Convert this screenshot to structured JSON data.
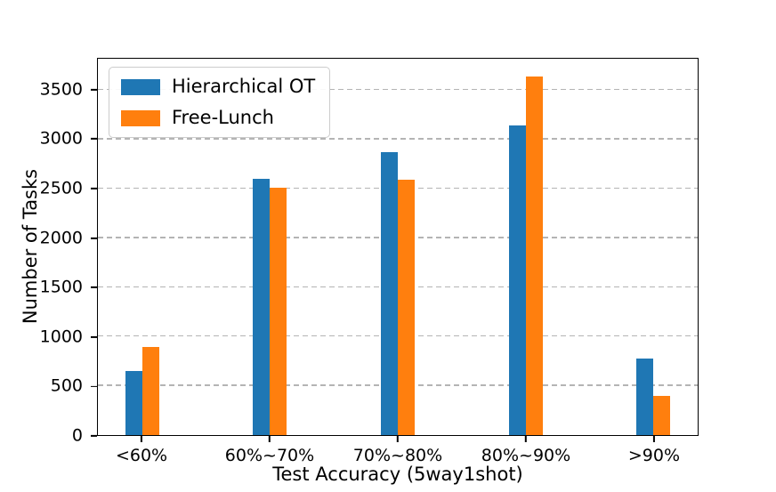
{
  "chart_data": {
    "type": "bar",
    "title": "",
    "categories": [
      "<60%",
      "60%~70%",
      "70%~80%",
      "80%~90%",
      ">90%"
    ],
    "series": [
      {
        "name": "Hierarchical OT",
        "color": "#1f77b4",
        "values": [
          650,
          2590,
          2860,
          3130,
          770
        ]
      },
      {
        "name": "Free-Lunch",
        "color": "#ff7f0e",
        "values": [
          890,
          2500,
          2580,
          3620,
          400
        ]
      }
    ],
    "xlabel": "Test Accuracy (5way1shot)",
    "ylabel": "Number of Tasks",
    "ylim": [
      0,
      3820
    ],
    "yticks": [
      0,
      500,
      1000,
      1500,
      2000,
      2500,
      3000,
      3500
    ],
    "grid": "horizontal-dashed",
    "grid_color": "#b4b4b4",
    "legend_position": "upper-left",
    "group_centers_pct": [
      7.4,
      28.7,
      50.0,
      71.3,
      92.6
    ]
  }
}
